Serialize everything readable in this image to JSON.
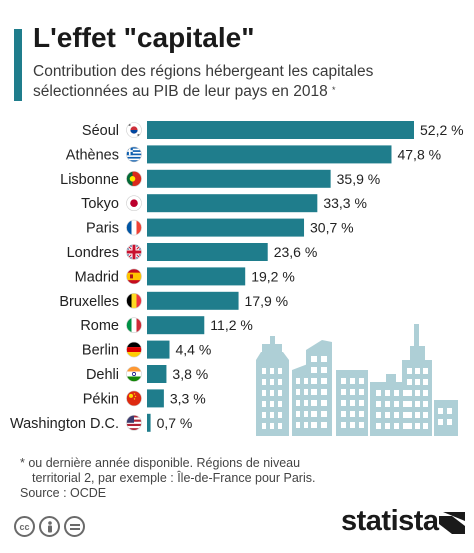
{
  "header": {
    "title": "L'effet \"capitale\"",
    "subtitle": "Contribution des régions hébergeant les capitales sélectionnées au PIB de leur pays en 2018",
    "subtitle_mark": "*"
  },
  "chart_data": {
    "type": "bar",
    "orientation": "horizontal",
    "categories": [
      "Séoul",
      "Athènes",
      "Lisbonne",
      "Tokyo",
      "Paris",
      "Londres",
      "Madrid",
      "Bruxelles",
      "Rome",
      "Berlin",
      "Dehli",
      "Pékin",
      "Washington D.C."
    ],
    "series": [
      {
        "values": [
          52.2,
          47.8,
          35.9,
          33.3,
          30.7,
          23.6,
          19.2,
          17.9,
          11.2,
          4.4,
          3.8,
          3.3,
          0.7
        ],
        "labels": [
          "52,2 %",
          "47,8 %",
          "35,9 %",
          "33,3 %",
          "30,7 %",
          "23,6 %",
          "19,2 %",
          "17,9 %",
          "11,2 %",
          "4,4 %",
          "3,8 %",
          "3,3 %",
          "0,7 %"
        ]
      }
    ],
    "flags": [
      "south-korea",
      "greece",
      "portugal",
      "japan",
      "france",
      "united-kingdom",
      "spain",
      "belgium",
      "italy",
      "germany",
      "india",
      "china",
      "united-states"
    ],
    "xlim": [
      0,
      52.2
    ],
    "grid": false,
    "legend": "none",
    "bar_color": "#1f7d8c"
  },
  "footer": {
    "note_line1": "* ou dernière année disponible. Régions de niveau",
    "note_line2": "territorial 2, par exemple : Île-de-France pour Paris.",
    "source": "Source : OCDE",
    "license_icons": [
      "cc",
      "by",
      "nd"
    ],
    "brand": "statista"
  },
  "colors": {
    "accent": "#1f7d8c",
    "bar": "#1f7d8c",
    "illustration": "#aecfd6"
  }
}
